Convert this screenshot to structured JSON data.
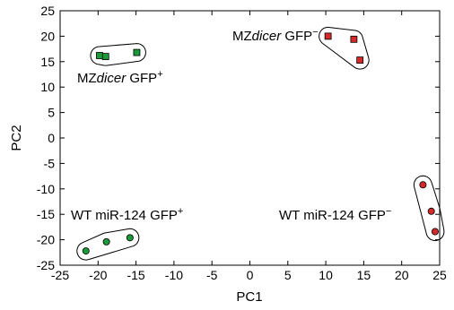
{
  "chart_data": {
    "type": "scatter",
    "xlabel": "PC1",
    "ylabel": "PC2",
    "xlim": [
      -25,
      25
    ],
    "ylim": [
      -25,
      25
    ],
    "xticks": [
      -25,
      -20,
      -15,
      -10,
      -5,
      0,
      5,
      10,
      15,
      20,
      25
    ],
    "yticks": [
      25,
      20,
      15,
      10,
      5,
      0,
      -5,
      -10,
      -15,
      -20,
      -25
    ],
    "grid": false,
    "groups": [
      {
        "label": {
          "prefix": "MZ",
          "italic": "dicer",
          "suffix": " GFP",
          "sup": "+"
        },
        "marker": "square",
        "color": "#1a9a3a",
        "points": [
          {
            "x": -19.8,
            "y": 16.2
          },
          {
            "x": -19.0,
            "y": 16.0
          },
          {
            "x": -14.9,
            "y": 16.8
          }
        ]
      },
      {
        "label": {
          "prefix": "MZ",
          "italic": "dicer",
          "suffix": " GFP",
          "sup": "−"
        },
        "marker": "square",
        "color": "#d42a2a",
        "points": [
          {
            "x": 10.3,
            "y": 20.0
          },
          {
            "x": 13.7,
            "y": 19.4
          },
          {
            "x": 14.5,
            "y": 15.3
          }
        ]
      },
      {
        "label": {
          "prefix": "WT miR-124 GFP",
          "italic": "",
          "suffix": "",
          "sup": "+"
        },
        "marker": "circle",
        "color": "#1a9a3a",
        "points": [
          {
            "x": -21.6,
            "y": -22.2
          },
          {
            "x": -18.9,
            "y": -20.4
          },
          {
            "x": -15.8,
            "y": -19.6
          }
        ]
      },
      {
        "label": {
          "prefix": "WT miR-124 GFP",
          "italic": "",
          "suffix": "",
          "sup": "−"
        },
        "marker": "circle",
        "color": "#d42a2a",
        "points": [
          {
            "x": 22.8,
            "y": -9.2
          },
          {
            "x": 23.9,
            "y": -14.4
          },
          {
            "x": 24.4,
            "y": -18.4
          }
        ]
      }
    ]
  }
}
